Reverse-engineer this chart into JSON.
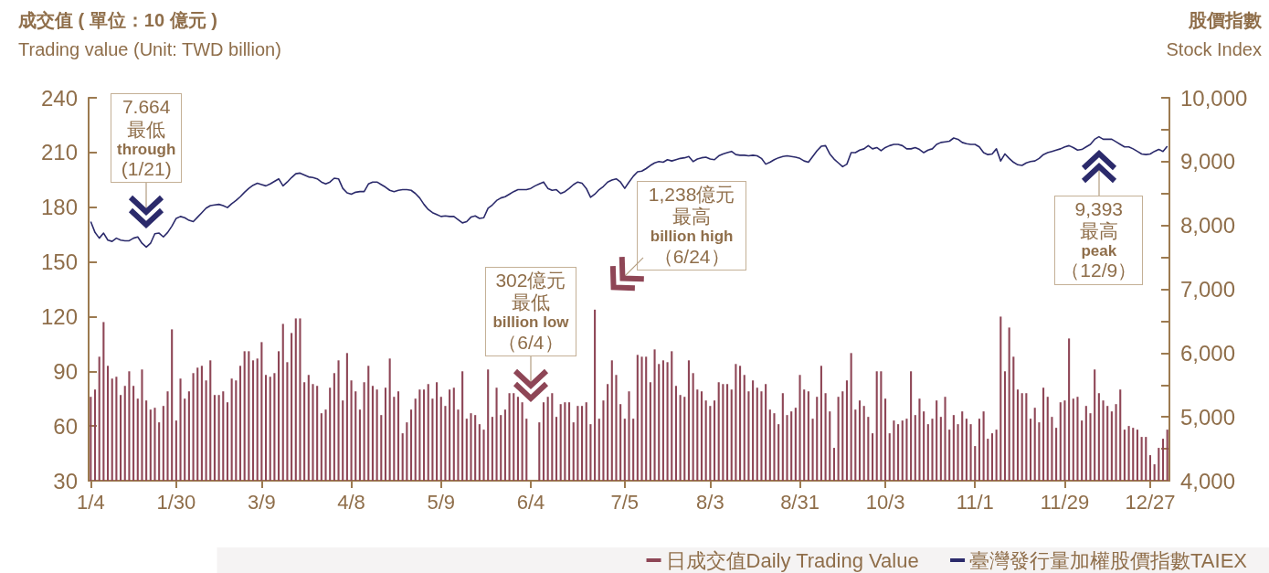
{
  "chart_data": {
    "type": "bar",
    "ylabel": "成交值 ( 單位：10 億元 )\nTrading value (Unit: TWD billion)",
    "y2label": "股價指數\nStock Index",
    "categories": [
      "1/4",
      null,
      null,
      null,
      null,
      null,
      null,
      null,
      null,
      null,
      null,
      null,
      null,
      null,
      null,
      null,
      null,
      null,
      null,
      null,
      "1/30",
      null,
      null,
      null,
      null,
      null,
      null,
      null,
      null,
      null,
      null,
      null,
      null,
      null,
      null,
      null,
      null,
      null,
      null,
      null,
      "3/9",
      null,
      null,
      null,
      null,
      null,
      null,
      null,
      null,
      null,
      null,
      null,
      null,
      null,
      null,
      null,
      null,
      null,
      null,
      null,
      null,
      "4/8",
      null,
      null,
      null,
      null,
      null,
      null,
      null,
      null,
      null,
      null,
      null,
      null,
      null,
      null,
      null,
      null,
      null,
      null,
      null,
      null,
      "5/9",
      null,
      null,
      null,
      null,
      null,
      null,
      null,
      null,
      null,
      null,
      null,
      null,
      null,
      null,
      null,
      null,
      null,
      null,
      null,
      null,
      "6/4",
      null,
      null,
      null,
      null,
      null,
      null,
      null,
      null,
      null,
      null,
      null,
      null,
      null,
      null,
      null,
      null,
      null,
      null,
      null,
      null,
      null,
      "7/5",
      null,
      null,
      null,
      null,
      null,
      null,
      null,
      null,
      null,
      null,
      null,
      null,
      null,
      null,
      null,
      null,
      null,
      null,
      null,
      "8/3",
      null,
      null,
      null,
      null,
      null,
      null,
      null,
      null,
      null,
      null,
      null,
      null,
      null,
      null,
      null,
      null,
      null,
      null,
      null,
      null,
      "8/31",
      null,
      null,
      null,
      null,
      null,
      null,
      null,
      null,
      null,
      null,
      null,
      null,
      null,
      null,
      null,
      null,
      null,
      null,
      null,
      "10/3",
      null,
      null,
      null,
      null,
      null,
      null,
      null,
      null,
      null,
      null,
      null,
      null,
      null,
      null,
      null,
      null,
      null,
      null,
      null,
      null,
      "11/1",
      null,
      null,
      null,
      null,
      null,
      null,
      null,
      null,
      null,
      null,
      null,
      null,
      null,
      null,
      null,
      null,
      null,
      null,
      null,
      null,
      "11/29",
      null,
      null,
      null,
      null,
      null,
      null,
      null,
      null,
      null,
      null,
      null,
      null,
      null,
      null,
      null,
      null,
      null,
      null,
      null,
      "12/27",
      null,
      null,
      null,
      null
    ],
    "series": [
      {
        "name": "日成交值Daily Trading Value",
        "color": "#8e4656",
        "values": [
          76,
          80,
          98,
          117,
          93,
          86,
          87,
          77,
          82,
          90,
          82,
          75,
          91,
          74,
          69,
          70,
          62,
          71,
          79,
          113,
          63,
          86,
          75,
          79,
          89,
          92,
          93,
          85,
          96,
          77,
          77,
          79,
          73,
          86,
          85,
          93,
          101,
          101,
          96,
          97,
          106,
          88,
          87,
          89,
          101,
          116,
          95,
          111,
          119,
          119,
          84,
          88,
          83,
          82,
          67,
          69,
          81,
          89,
          96,
          74,
          100,
          85,
          79,
          69,
          84,
          93,
          82,
          80,
          66,
          81,
          97,
          76,
          79,
          56,
          62,
          69,
          75,
          80,
          80,
          83,
          75,
          84,
          76,
          71,
          80,
          81,
          69,
          90,
          64,
          67,
          66,
          61,
          58,
          91,
          65,
          81,
          66,
          69,
          78,
          78,
          76,
          73,
          64,
          null,
          null,
          62,
          73,
          76,
          78,
          65,
          72,
          73,
          73,
          62,
          71,
          71,
          73,
          61,
          123.8,
          64,
          74,
          83,
          96,
          88,
          72,
          64,
          79,
          64,
          99,
          98,
          98,
          84,
          102,
          94,
          96,
          95,
          101,
          82,
          77,
          76,
          96,
          89,
          80,
          79,
          74,
          71,
          74,
          84,
          83,
          83,
          80,
          94,
          93,
          88,
          79,
          85,
          81,
          79,
          83,
          69,
          67,
          61,
          78,
          66,
          68,
          70,
          88,
          80,
          79,
          64,
          76,
          93,
          78,
          68,
          48,
          76,
          79,
          85,
          100,
          69,
          74,
          71,
          65,
          56,
          90,
          90,
          75,
          56,
          63,
          61,
          63,
          64,
          90,
          66,
          75,
          68,
          61,
          64,
          74,
          65,
          76,
          58,
          66,
          61,
          68,
          64,
          61,
          49,
          64,
          68,
          53,
          56,
          58,
          120,
          90,
          114,
          98,
          80,
          78,
          78,
          64,
          70,
          62,
          81,
          76,
          65,
          59,
          73,
          74,
          108,
          75,
          76,
          63,
          71,
          67,
          91,
          78,
          74,
          71,
          68,
          72,
          80,
          58,
          60,
          59,
          58,
          54,
          54,
          44,
          39,
          48,
          53,
          58
        ]
      },
      {
        "name": "臺灣發行量加權股價指數TAIEX",
        "type": "line",
        "axis": "y2",
        "color": "#2b2a6b",
        "values": [
          8060,
          7890,
          7800,
          7880,
          7770,
          7750,
          7800,
          7770,
          7760,
          7760,
          7800,
          7820,
          7720,
          7660,
          7720,
          7870,
          7880,
          7820,
          7890,
          7990,
          8110,
          8140,
          8120,
          8080,
          8060,
          8130,
          8200,
          8270,
          8310,
          8320,
          8330,
          8310,
          8280,
          8340,
          8390,
          8450,
          8520,
          8580,
          8630,
          8660,
          8640,
          8620,
          8650,
          8690,
          8730,
          8620,
          8680,
          8750,
          8810,
          8820,
          8790,
          8760,
          8750,
          8730,
          8680,
          8650,
          8680,
          8740,
          8730,
          8580,
          8510,
          8490,
          8520,
          8530,
          8530,
          8650,
          8680,
          8680,
          8640,
          8600,
          8550,
          8530,
          8550,
          8560,
          8560,
          8550,
          8500,
          8430,
          8330,
          8250,
          8200,
          8170,
          8140,
          8150,
          8140,
          8140,
          8090,
          8040,
          8060,
          8130,
          8150,
          8110,
          8120,
          8270,
          8320,
          8390,
          8430,
          8450,
          8490,
          8530,
          8560,
          8560,
          8560,
          8580,
          8620,
          8650,
          8680,
          8580,
          8550,
          8560,
          8500,
          8530,
          8580,
          8640,
          8680,
          8660,
          8580,
          8440,
          8490,
          8560,
          8610,
          8680,
          8710,
          8730,
          8680,
          8580,
          8680,
          8770,
          8840,
          8850,
          8890,
          8940,
          8980,
          9000,
          8990,
          9030,
          9010,
          9030,
          9050,
          9060,
          9080,
          9000,
          9040,
          9060,
          9070,
          9040,
          9030,
          9090,
          9120,
          9140,
          9160,
          9110,
          9100,
          9100,
          9090,
          9100,
          9090,
          9050,
          8960,
          8990,
          9030,
          9060,
          9080,
          9090,
          9080,
          9070,
          9050,
          9010,
          8990,
          9080,
          9170,
          9240,
          9250,
          9120,
          9040,
          8980,
          8920,
          8960,
          9140,
          9140,
          9180,
          9200,
          9250,
          9200,
          9220,
          9170,
          9220,
          9250,
          9270,
          9270,
          9250,
          9200,
          9200,
          9220,
          9190,
          9140,
          9180,
          9200,
          9270,
          9300,
          9310,
          9320,
          9370,
          9350,
          9300,
          9280,
          9270,
          9270,
          9230,
          9140,
          9110,
          9120,
          9200,
          9010,
          9120,
          9050,
          8990,
          8950,
          8940,
          8980,
          9000,
          9010,
          9050,
          9110,
          9140,
          9160,
          9180,
          9200,
          9230,
          9250,
          9220,
          9180,
          9190,
          9230,
          9270,
          9350,
          9390,
          9350,
          9350,
          9350,
          9310,
          9270,
          9230,
          9230,
          9200,
          9160,
          9120,
          9110,
          9120,
          9160,
          9190,
          9160,
          9240
        ]
      }
    ],
    "ylim": [
      30,
      240
    ],
    "yticks": [
      30,
      60,
      90,
      120,
      150,
      180,
      210,
      240
    ],
    "y2lim": [
      4000,
      10000
    ],
    "y2ticks": [
      {
        "value": 4000,
        "label": "4,000"
      },
      {
        "value": 4500,
        "label": null
      },
      {
        "value": 5000,
        "label": "5,000"
      },
      {
        "value": 5500,
        "label": null
      },
      {
        "value": 6000,
        "label": "6,000"
      },
      {
        "value": 6500,
        "label": null
      },
      {
        "value": 7000,
        "label": "7,000"
      },
      {
        "value": 7500,
        "label": null
      },
      {
        "value": 8000,
        "label": "8,000"
      },
      {
        "value": 8500,
        "label": null
      },
      {
        "value": 9000,
        "label": "9,000"
      },
      {
        "value": 9500,
        "label": null
      },
      {
        "value": 10000,
        "label": "10,000"
      }
    ],
    "annotations": [
      "7.664\n最低\nthrough\n(1/21)",
      "302億元最低\nbillion low\n（6/4）",
      "1,238億元最高\nbillion high\n（6/24）",
      "9,393\n最高\npeak\n（12/9）"
    ],
    "legend": "bottom right"
  }
}
